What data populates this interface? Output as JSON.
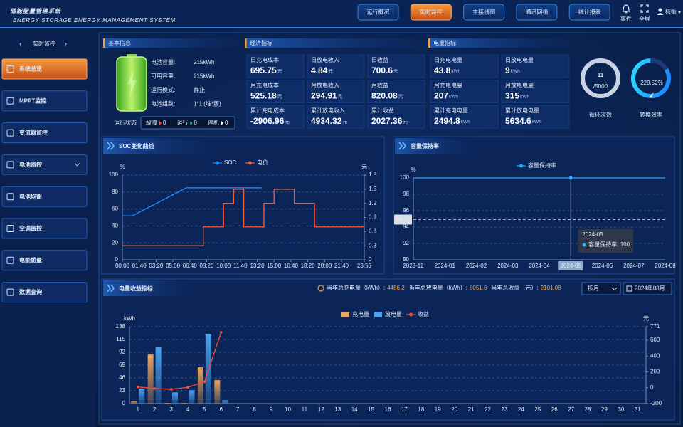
{
  "header": {
    "title": "储能能量管理系统",
    "subtitle": "ENERGY STORAGE ENERGY MANAGEMENT SYSTEM",
    "tabs": [
      "运行概况",
      "实时监控",
      "主接线图",
      "通讯网络",
      "统计报表"
    ],
    "active_tab": 1,
    "tools": [
      "事件",
      "全屏"
    ],
    "user": "核赈"
  },
  "sidebar": {
    "title": "实时监控",
    "items": [
      "系统总览",
      "MPPT监控",
      "变流器监控",
      "电池监控",
      "电池均衡",
      "空调监控",
      "电能质量",
      "数据查询"
    ],
    "active_item": 0
  },
  "basic_info": {
    "title": "基本信息",
    "rows": [
      [
        "电池容量:",
        "215kWh"
      ],
      [
        "可用容量:",
        "215kWh"
      ],
      [
        "运行模式:",
        "静止"
      ],
      [
        "电池组数:",
        "1*1 (堆*簇)"
      ]
    ],
    "status_title": "运行状态",
    "statuses": [
      {
        "label": "故障",
        "count": 0,
        "color": "#ff4d4f"
      },
      {
        "label": "运行",
        "count": 0,
        "color": "#3ddc84"
      },
      {
        "label": "停机",
        "count": 0,
        "color": "#ffffff"
      }
    ]
  },
  "economic": {
    "title": "经济指标",
    "items": [
      {
        "label": "日充电成本",
        "value": 695.75,
        "unit": "元"
      },
      {
        "label": "日放电收入",
        "value": 4.84,
        "unit": "元"
      },
      {
        "label": "日收益",
        "value": 700.6,
        "unit": "元"
      },
      {
        "label": "月充电成本",
        "value": 525.18,
        "unit": "元"
      },
      {
        "label": "月放电收入",
        "value": 294.91,
        "unit": "元"
      },
      {
        "label": "月收益",
        "value": 820.08,
        "unit": "元"
      },
      {
        "label": "累计充电成本",
        "value": -2906.96,
        "unit": "元"
      },
      {
        "label": "累计放电收入",
        "value": 4934.32,
        "unit": "元"
      },
      {
        "label": "累计收益",
        "value": 2027.36,
        "unit": "元"
      }
    ]
  },
  "energy": {
    "title": "电量指标",
    "items": [
      {
        "label": "日充电电量",
        "value": 43.8,
        "unit": "kWh"
      },
      {
        "label": "日放电电量",
        "value": 9,
        "unit": "kWh"
      },
      {
        "label": "月充电电量",
        "value": 207,
        "unit": "kWh"
      },
      {
        "label": "月放电电量",
        "value": 315,
        "unit": "kWh"
      },
      {
        "label": "累计充电电量",
        "value": 2494.8,
        "unit": "kWh"
      },
      {
        "label": "累计放电电量",
        "value": 5634.6,
        "unit": "kWh"
      }
    ]
  },
  "gauges": [
    {
      "value": 11,
      "total": "/5000",
      "label": "循环次数"
    },
    {
      "value": "229.52%",
      "label": "转换效率"
    }
  ],
  "energy_panel": {
    "summary": [
      {
        "label": "当年总充电量（kWh）:",
        "value": 4486.2
      },
      {
        "label": "当年总放电量（kWh）:",
        "value": 6051.6
      },
      {
        "label": "当年总收益（元）:",
        "value": 2101.08
      }
    ],
    "period": "按月",
    "date": "2024年08月"
  },
  "chart_data": [
    {
      "type": "line",
      "title": "SOC变化曲线",
      "y_unit": "%",
      "y2_unit": "元",
      "legend": "top",
      "grid": true,
      "xlim": [
        0,
        1435
      ],
      "xticks": [
        {
          "value": 0,
          "label": "00:00"
        },
        {
          "value": 100,
          "label": "01:40"
        },
        {
          "value": 200,
          "label": "03:20"
        },
        {
          "value": 300,
          "label": "05:00"
        },
        {
          "value": 400,
          "label": "06:40"
        },
        {
          "value": 500,
          "label": "08:20"
        },
        {
          "value": 600,
          "label": "10:00"
        },
        {
          "value": 700,
          "label": "11:40"
        },
        {
          "value": 800,
          "label": "13:20"
        },
        {
          "value": 900,
          "label": "15:00"
        },
        {
          "value": 1000,
          "label": "16:40"
        },
        {
          "value": 1100,
          "label": "18:20"
        },
        {
          "value": 1200,
          "label": "20:00"
        },
        {
          "value": 1300,
          "label": "21:40"
        },
        {
          "value": 1435,
          "label": "23:55"
        }
      ],
      "ylim": [
        0,
        100
      ],
      "yticks": [
        0,
        20,
        40,
        60,
        80,
        100
      ],
      "y2lim": [
        0,
        1.8
      ],
      "y2ticks": [
        0,
        0.3,
        0.6,
        0.9,
        1.2,
        1.5,
        1.8
      ],
      "series": [
        {
          "name": "SOC",
          "color": "#1e8fff",
          "x": [
            0,
            60,
            380,
            825
          ],
          "values": [
            52,
            52,
            85,
            85
          ]
        },
        {
          "name": "电价",
          "color": "#ff5a36",
          "axis": "y2",
          "x": [
            0,
            480,
            480,
            600,
            600,
            660,
            660,
            720,
            720,
            840,
            840,
            900,
            900,
            1020,
            1020,
            1140,
            1140,
            1435
          ],
          "values": [
            0.3,
            0.3,
            0.7,
            0.7,
            1.2,
            1.2,
            1.5,
            1.5,
            0.7,
            0.7,
            1.2,
            1.2,
            1.5,
            1.5,
            1.2,
            1.2,
            0.7,
            0.7
          ]
        }
      ]
    },
    {
      "type": "line",
      "title": "容量保持率",
      "y_unit": "%",
      "legend": "top",
      "grid": true,
      "categories": [
        "2023-12",
        "2024-01",
        "2024-02",
        "2024-03",
        "2024-04",
        "2024-05",
        "2024-06",
        "2024-07",
        "2024-08"
      ],
      "ylim": [
        90,
        100
      ],
      "yticks": [
        90,
        92,
        94,
        96,
        98,
        100
      ],
      "series": [
        {
          "name": "容量保持率",
          "color": "#2aa8ff",
          "values": [
            100,
            100,
            100,
            100,
            100,
            100,
            100,
            100,
            100
          ]
        }
      ],
      "tooltip": {
        "index": 5,
        "label": "容量保持率: 100"
      },
      "crosshair_y": 94.91
    },
    {
      "type": "bar",
      "title": "电量收益指标",
      "y_unit": "kWh",
      "y2_unit": "元",
      "legend": "top",
      "grid": true,
      "categories": [
        1,
        2,
        3,
        4,
        5,
        6,
        7,
        8,
        9,
        10,
        11,
        12,
        13,
        14,
        15,
        16,
        17,
        18,
        19,
        20,
        21,
        22,
        23,
        24,
        25,
        26,
        27,
        28,
        29,
        30,
        31
      ],
      "ylim": [
        0,
        138
      ],
      "yticks": [
        0,
        23,
        46,
        69,
        92,
        115,
        138
      ],
      "y2lim": [
        -200,
        771
      ],
      "y2ticks": [
        -200,
        0,
        200,
        400,
        600,
        771
      ],
      "series": [
        {
          "name": "充电量",
          "color": "#e8a45c",
          "values": [
            5,
            88,
            1,
            1,
            65,
            42,
            null,
            null,
            null,
            null,
            null,
            null,
            null,
            null,
            null,
            null,
            null,
            null,
            null,
            null,
            null,
            null,
            null,
            null,
            null,
            null,
            null,
            null,
            null,
            null,
            null
          ]
        },
        {
          "name": "放电量",
          "color": "#4aa3f0",
          "values": [
            27,
            101,
            20,
            24,
            124,
            6,
            null,
            null,
            null,
            null,
            null,
            null,
            null,
            null,
            null,
            null,
            null,
            null,
            null,
            null,
            null,
            null,
            null,
            null,
            null,
            null,
            null,
            null,
            null,
            null,
            null
          ]
        },
        {
          "name": "收益",
          "color": "#ff4b3a",
          "type": "line",
          "axis": "y2",
          "markers": true,
          "values": [
            10,
            -10,
            -20,
            5,
            75,
            700,
            null,
            null,
            null,
            null,
            null,
            null,
            null,
            null,
            null,
            null,
            null,
            null,
            null,
            null,
            null,
            null,
            null,
            null,
            null,
            null,
            null,
            null,
            null,
            null,
            null
          ]
        }
      ]
    }
  ]
}
